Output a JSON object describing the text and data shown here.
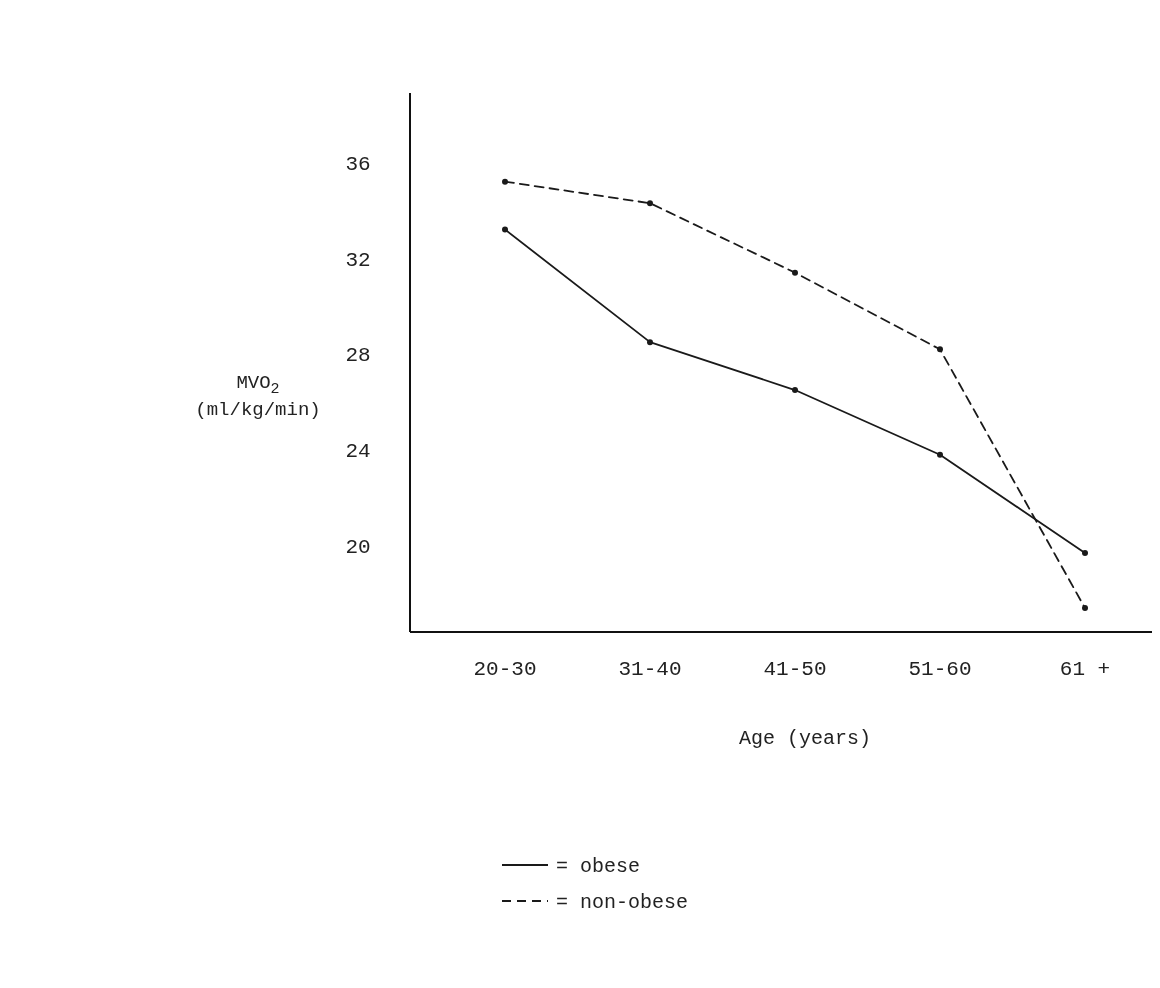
{
  "chart_data": {
    "type": "line",
    "xlabel": "Age (years)",
    "ylabel": "MVO$_{2}$ (ml/kg/min)",
    "categories": [
      "20-30",
      "31-40",
      "41-50",
      "51-60",
      "61 +"
    ],
    "series": [
      {
        "name": "= obese",
        "color": "#1a1a1a",
        "line_style": "solid",
        "values": [
          33.2,
          28.5,
          26.5,
          23.8,
          19.7
        ]
      },
      {
        "name": "= non-obese",
        "color": "#1a1a1a",
        "line_style": "dashed",
        "values": [
          35.2,
          34.3,
          31.4,
          28.2,
          17.4
        ]
      }
    ],
    "ylim": [
      16.4,
      38.9
    ],
    "yticks": [
      20,
      24,
      28,
      32,
      36
    ],
    "grid": false,
    "marker": "circle",
    "legend": "bottom"
  }
}
